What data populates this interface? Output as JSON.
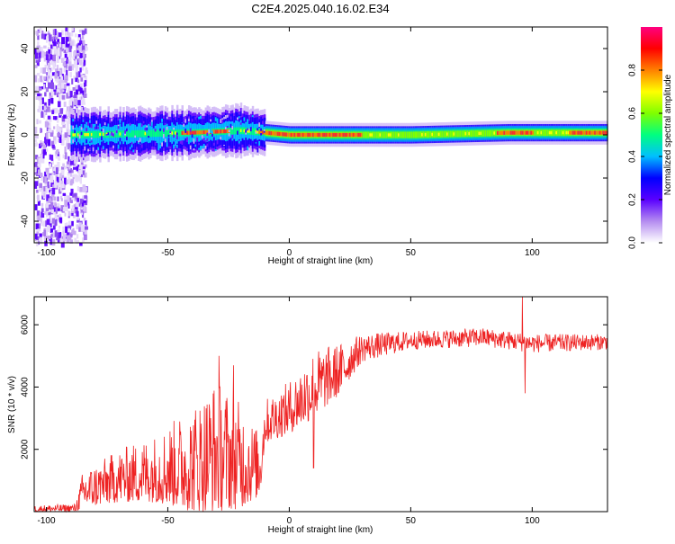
{
  "title": "C2E4.2025.040.16.02.E34",
  "chart_data": [
    {
      "type": "heatmap",
      "name": "spectrogram",
      "xlabel": "Height of straight line (km)",
      "ylabel": "Frequency (Hz)",
      "xlim": [
        -105,
        131
      ],
      "ylim": [
        -50,
        50
      ],
      "xticks": [
        -100,
        -50,
        0,
        50,
        100
      ],
      "yticks": [
        -40,
        -20,
        0,
        20,
        40
      ],
      "colorbar": {
        "label": "Normalized spectral amplitude",
        "range": [
          0.0,
          1.0
        ],
        "ticks": [
          0.0,
          0.2,
          0.4,
          0.6,
          0.8
        ],
        "tick_labels": [
          "0.0",
          "0.2",
          "0.4",
          "0.6",
          "0.8"
        ],
        "colors": [
          "#ffffff",
          "#b48cf0",
          "#5a00ff",
          "#0000ff",
          "#00bfff",
          "#00ff80",
          "#7fff00",
          "#ffff00",
          "#ff8000",
          "#ff0000",
          "#ff0080"
        ]
      },
      "noise_band_x": [
        -105,
        -84
      ],
      "signal_band": {
        "center_freq": [
          {
            "x": -90,
            "f": 0
          },
          {
            "x": -40,
            "f": 1
          },
          {
            "x": -20,
            "f": 2
          },
          {
            "x": 0,
            "f": 0
          },
          {
            "x": 50,
            "f": 0
          },
          {
            "x": 90,
            "f": 1
          },
          {
            "x": 131,
            "f": 1
          }
        ],
        "peak_ranges_x": [
          [
            -45,
            -25
          ],
          [
            -13,
            30
          ],
          [
            85,
            100
          ],
          [
            115,
            131
          ]
        ]
      }
    },
    {
      "type": "line",
      "name": "snr",
      "xlabel": "Height of straight line (km)",
      "ylabel": "SNR (10 * v/v)",
      "xlim": [
        -105,
        131
      ],
      "ylim": [
        0,
        6900
      ],
      "xticks": [
        -100,
        -50,
        0,
        50,
        100
      ],
      "yticks": [
        2000,
        4000,
        6000
      ],
      "color": "#ee2222",
      "envelope": [
        {
          "x": -105,
          "min": 0,
          "max": 200
        },
        {
          "x": -88,
          "min": 0,
          "max": 250
        },
        {
          "x": -85,
          "min": 100,
          "max": 1300
        },
        {
          "x": -70,
          "min": 300,
          "max": 2000
        },
        {
          "x": -55,
          "min": 300,
          "max": 2500
        },
        {
          "x": -40,
          "min": 0,
          "max": 3400
        },
        {
          "x": -30,
          "min": 0,
          "max": 4300
        },
        {
          "x": -20,
          "min": 100,
          "max": 3500
        },
        {
          "x": -12,
          "min": 500,
          "max": 2500
        },
        {
          "x": -10,
          "min": 2200,
          "max": 3600
        },
        {
          "x": 0,
          "min": 2500,
          "max": 4200
        },
        {
          "x": 10,
          "min": 3000,
          "max": 5200
        },
        {
          "x": 20,
          "min": 3700,
          "max": 5400
        },
        {
          "x": 30,
          "min": 4800,
          "max": 5700
        },
        {
          "x": 50,
          "min": 5200,
          "max": 5800
        },
        {
          "x": 80,
          "min": 5300,
          "max": 5900
        },
        {
          "x": 100,
          "min": 5100,
          "max": 5700
        },
        {
          "x": 131,
          "min": 5200,
          "max": 5700
        }
      ],
      "spikes": [
        {
          "x": 96,
          "y": 6900
        },
        {
          "x": 97,
          "y": 3800
        },
        {
          "x": 10,
          "y": 1400
        },
        {
          "x": -29,
          "y": 5000
        },
        {
          "x": -23,
          "y": 4700
        }
      ]
    }
  ]
}
